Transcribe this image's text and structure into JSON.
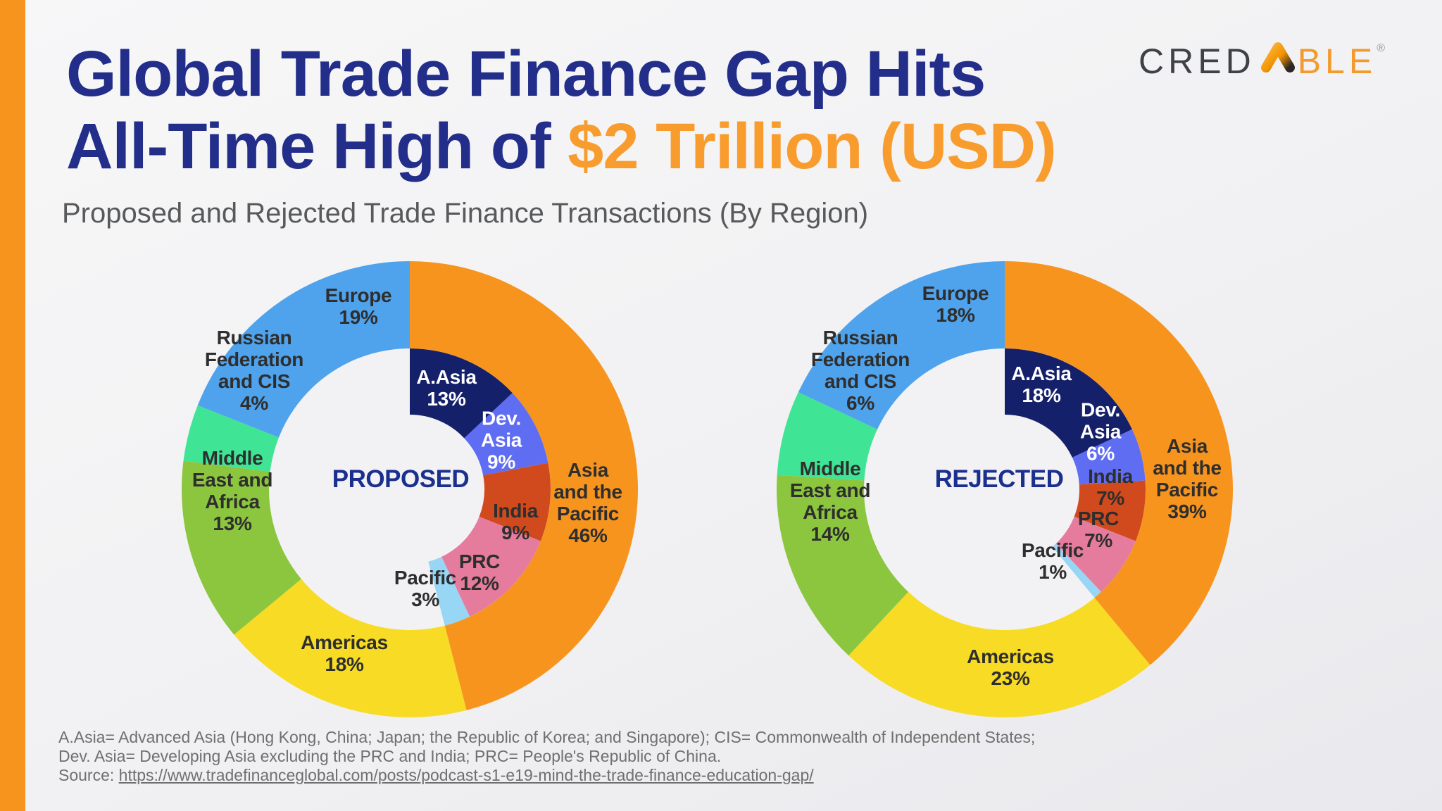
{
  "page": {
    "title_line1": "Global Trade Finance Gap Hits",
    "title_line2_prefix": "All-Time High of ",
    "title_line2_highlight": "$2 Trillion (USD)",
    "subtitle": "Proposed and Rejected Trade Finance Transactions (By Region)",
    "footnote_line1": "A.Asia= Advanced Asia (Hong Kong, China; Japan; the Republic of Korea; and Singapore); CIS= Commonwealth of Independent States;",
    "footnote_line2": "Dev. Asia= Developing Asia excluding the PRC and India; PRC= People's Republic of China.",
    "source_label": "Source: ",
    "source_url": "https://www.tradefinanceglobal.com/posts/podcast-s1-e19-mind-the-trade-finance-education-gap/"
  },
  "brand": {
    "prefix": "CRED",
    "suffix": "BLE",
    "registered": "®"
  },
  "colors": {
    "accent_bar": "#F7941E",
    "title_navy": "#222E89",
    "title_orange": "#F89C2E",
    "subtitle_gray": "#58595B",
    "footnote_gray": "#6F6F6F",
    "label_dark": "#2E2E2E",
    "label_white": "#FFFFFF",
    "center_label_blue": "#1B2F8F",
    "hole": "#F2F2F4",
    "logo_gray": "#3E4247",
    "logo_orange": "#F39A2D"
  },
  "chart_data": [
    {
      "type": "pie",
      "variant": "two-ring-donut",
      "title": "PROPOSED",
      "center_xy": [
        -13,
        -14
      ],
      "legend_position": "labels-on-slices",
      "rings": {
        "outer": {
          "name": "regions",
          "unit": "%",
          "segments": [
            {
              "label": "Asia and the Pacific",
              "value": 46,
              "color": "#F7941E",
              "text": "#2E2E2E",
              "lines": [
                "Asia",
                "and the",
                "Pacific",
                "46%"
              ],
              "xy": [
                253,
                19
              ]
            },
            {
              "label": "Americas",
              "value": 18,
              "color": "#F7DB25",
              "text": "#2E2E2E",
              "lines": [
                "Americas",
                "18%"
              ],
              "xy": [
                -93,
                233
              ]
            },
            {
              "label": "Middle East and Africa",
              "value": 13,
              "color": "#8CC63E",
              "text": "#2E2E2E",
              "lines": [
                "Middle",
                "East and",
                "Africa",
                "13%"
              ],
              "xy": [
                -252,
                2
              ]
            },
            {
              "label": "Russian Federation and CIS",
              "value": 4,
              "color": "#3FE495",
              "text": "#2E2E2E",
              "lines": [
                "Russian",
                "Federation",
                "and CIS",
                "4%"
              ],
              "xy": [
                -221,
                -169
              ]
            },
            {
              "label": "Europe",
              "value": 19,
              "color": "#4FA3EC",
              "text": "#2E2E2E",
              "lines": [
                "Europe",
                "19%"
              ],
              "xy": [
                -73,
                -260
              ]
            }
          ]
        },
        "inner": {
          "name": "asia-pacific-breakdown",
          "unit": "%",
          "segments": [
            {
              "label": "A.Asia",
              "value": 13,
              "color": "#15206A",
              "text": "#FFFFFF",
              "lines": [
                "A.Asia",
                "13%"
              ],
              "xy": [
                52,
                -144
              ]
            },
            {
              "label": "Dev. Asia",
              "value": 9,
              "color": "#5F6DF3",
              "text": "#FFFFFF",
              "lines": [
                "Dev.",
                "Asia",
                "9%"
              ],
              "xy": [
                130,
                -70
              ]
            },
            {
              "label": "India",
              "value": 9,
              "color": "#D14A1E",
              "text": "#2E2E2E",
              "lines": [
                "India",
                "9%"
              ],
              "xy": [
                150,
                46
              ]
            },
            {
              "label": "PRC",
              "value": 12,
              "color": "#E57C9E",
              "text": "#2E2E2E",
              "lines": [
                "PRC",
                "12%"
              ],
              "xy": [
                99,
                118
              ]
            },
            {
              "label": "Pacific",
              "value": 3,
              "color": "#97D6F4",
              "text": "#2E2E2E",
              "lines": [
                "Pacific",
                "3%"
              ],
              "xy": [
                22,
                141
              ]
            }
          ]
        }
      }
    },
    {
      "type": "pie",
      "variant": "two-ring-donut",
      "title": "REJECTED",
      "center_xy": [
        -8,
        -14
      ],
      "legend_position": "labels-on-slices",
      "rings": {
        "outer": {
          "name": "regions",
          "unit": "%",
          "segments": [
            {
              "label": "Asia and the Pacific",
              "value": 39,
              "color": "#F7941E",
              "text": "#2E2E2E",
              "lines": [
                "Asia",
                "and the",
                "Pacific",
                "39%"
              ],
              "xy": [
                259,
                -15
              ]
            },
            {
              "label": "Americas",
              "value": 23,
              "color": "#F7DB25",
              "text": "#2E2E2E",
              "lines": [
                "Americas",
                "23%"
              ],
              "xy": [
                8,
                253
              ]
            },
            {
              "label": "Middle East and Africa",
              "value": 14,
              "color": "#8CC63E",
              "text": "#2E2E2E",
              "lines": [
                "Middle",
                "East and",
                "Africa",
                "14%"
              ],
              "xy": [
                -248,
                17
              ]
            },
            {
              "label": "Russian Federation and CIS",
              "value": 6,
              "color": "#3FE495",
              "text": "#2E2E2E",
              "lines": [
                "Russian",
                "Federation",
                "and CIS",
                "6%"
              ],
              "xy": [
                -205,
                -169
              ]
            },
            {
              "label": "Europe",
              "value": 18,
              "color": "#4FA3EC",
              "text": "#2E2E2E",
              "lines": [
                "Europe",
                "18%"
              ],
              "xy": [
                -70,
                -263
              ]
            }
          ]
        },
        "inner": {
          "name": "asia-pacific-breakdown",
          "unit": "%",
          "segments": [
            {
              "label": "A.Asia",
              "value": 18,
              "color": "#15206A",
              "text": "#FFFFFF",
              "lines": [
                "A.Asia",
                "18%"
              ],
              "xy": [
                52,
                -149
              ]
            },
            {
              "label": "Dev. Asia",
              "value": 6,
              "color": "#5F6DF3",
              "text": "#FFFFFF",
              "lines": [
                "Dev.",
                "Asia",
                "6%"
              ],
              "xy": [
                136,
                -82
              ]
            },
            {
              "label": "India",
              "value": 7,
              "color": "#D14A1E",
              "text": "#2E2E2E",
              "lines": [
                "India",
                "7%"
              ],
              "xy": [
                150,
                -3
              ]
            },
            {
              "label": "PRC",
              "value": 7,
              "color": "#E57C9E",
              "text": "#2E2E2E",
              "lines": [
                "PRC",
                "7%"
              ],
              "xy": [
                133,
                57
              ]
            },
            {
              "label": "Pacific",
              "value": 1,
              "color": "#97D6F4",
              "text": "#2E2E2E",
              "lines": [
                "Pacific",
                "1%"
              ],
              "xy": [
                68,
                102
              ]
            }
          ]
        }
      }
    }
  ]
}
